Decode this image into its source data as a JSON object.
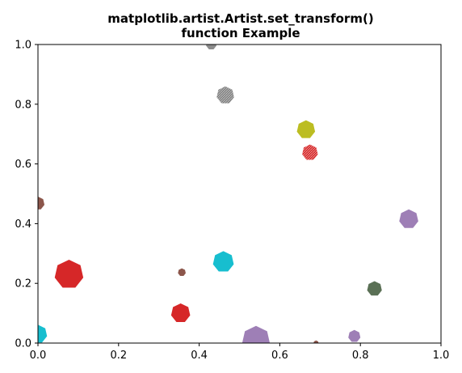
{
  "chart_data": {
    "type": "scatter",
    "title_line1": "matplotlib.artist.Artist.set_transform()",
    "title_line2": "function Example",
    "xlabel": "",
    "ylabel": "",
    "xlim": [
      0,
      1
    ],
    "ylim": [
      0,
      1
    ],
    "grid": false,
    "xticks": [
      "0.0",
      "0.2",
      "0.4",
      "0.6",
      "0.8",
      "1.0"
    ],
    "yticks": [
      "0.0",
      "0.2",
      "0.4",
      "0.6",
      "0.8",
      "1.0"
    ],
    "marker": "heptagon",
    "points": [
      {
        "x": 0.43,
        "y": 1.0,
        "size": 0.6,
        "color": "#8c8c8c"
      },
      {
        "x": 0.465,
        "y": 0.83,
        "size": 1.0,
        "color": "#7f7f7f",
        "hatched": true
      },
      {
        "x": 0.665,
        "y": 0.715,
        "size": 1.05,
        "color": "#bcbd22"
      },
      {
        "x": 0.675,
        "y": 0.638,
        "size": 0.9,
        "color": "#d62728",
        "hatched": true
      },
      {
        "x": 0.0,
        "y": 0.468,
        "size": 0.75,
        "color": "#8c564b"
      },
      {
        "x": 0.92,
        "y": 0.415,
        "size": 1.1,
        "color": "#9e7fb6"
      },
      {
        "x": 0.46,
        "y": 0.272,
        "size": 1.2,
        "color": "#17becf"
      },
      {
        "x": 0.077,
        "y": 0.23,
        "size": 1.65,
        "color": "#d62728"
      },
      {
        "x": 0.357,
        "y": 0.237,
        "size": 0.45,
        "color": "#8c564b"
      },
      {
        "x": 0.835,
        "y": 0.182,
        "size": 0.85,
        "color": "#5a7055"
      },
      {
        "x": 0.354,
        "y": 0.1,
        "size": 1.1,
        "color": "#d62728"
      },
      {
        "x": 0.0,
        "y": 0.03,
        "size": 1.05,
        "color": "#17becf"
      },
      {
        "x": 0.541,
        "y": 0.01,
        "size": 1.6,
        "color": "#9e7fb6"
      },
      {
        "x": 0.785,
        "y": 0.023,
        "size": 0.7,
        "color": "#9e7fb6"
      },
      {
        "x": 0.69,
        "y": 0.0,
        "size": 0.3,
        "color": "#8c564b"
      }
    ]
  }
}
